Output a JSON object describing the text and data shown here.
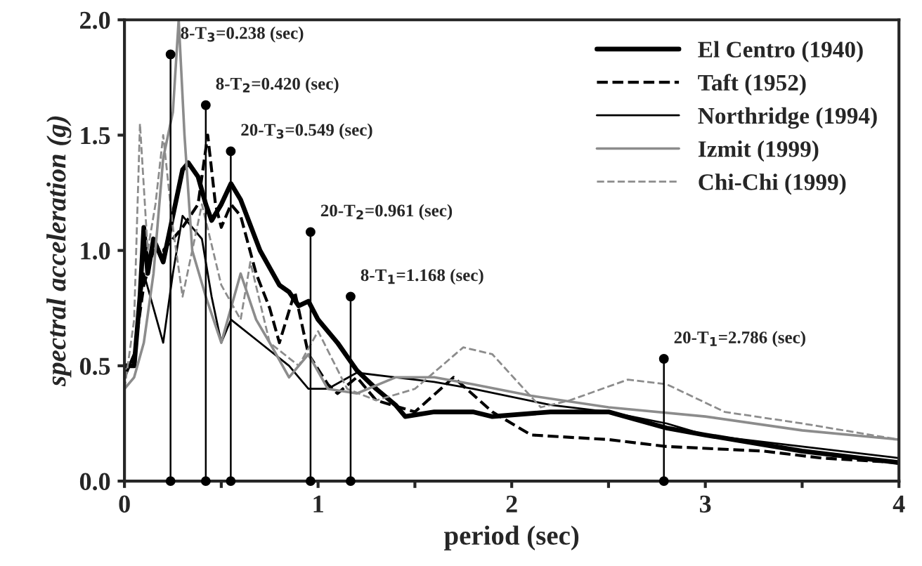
{
  "chart_data": {
    "type": "line",
    "xlabel": "period (sec)",
    "ylabel": "spectral acceleration (g)",
    "xlim": [
      0,
      4
    ],
    "ylim": [
      0,
      2.0
    ],
    "xticks": [
      0,
      {
        "value": 0.5,
        "label": null
      },
      1,
      {
        "value": 1.5,
        "label": null
      },
      2,
      {
        "value": 2.5,
        "label": null
      },
      3,
      {
        "value": 3.5,
        "label": null
      },
      4
    ],
    "yticks": [
      {
        "value": 0,
        "label": "0.0"
      },
      {
        "value": 0.5,
        "label": "0.5"
      },
      {
        "value": 1.0,
        "label": "1.0"
      },
      {
        "value": 1.5,
        "label": "1.5"
      },
      {
        "value": 2.0,
        "label": "2.0"
      }
    ],
    "grid": false,
    "legend": "top right",
    "marker": "none",
    "series": [
      {
        "name": "El Centro (1940)",
        "color": "#000000",
        "line_style": "solid",
        "x": [
          0,
          0.05,
          0.08,
          0.1,
          0.12,
          0.15,
          0.2,
          0.25,
          0.3,
          0.33,
          0.38,
          0.42,
          0.45,
          0.5,
          0.55,
          0.6,
          0.7,
          0.8,
          0.85,
          0.9,
          0.95,
          1.0,
          1.1,
          1.2,
          1.3,
          1.4,
          1.45,
          1.6,
          1.8,
          1.9,
          2.2,
          2.5,
          2.8,
          3.0,
          3.5,
          3.8,
          4.0
        ],
        "values": [
          0.5,
          0.5,
          0.8,
          1.1,
          0.9,
          1.05,
          0.95,
          1.15,
          1.35,
          1.38,
          1.32,
          1.2,
          1.13,
          1.2,
          1.29,
          1.22,
          1.0,
          0.85,
          0.82,
          0.76,
          0.78,
          0.7,
          0.6,
          0.48,
          0.4,
          0.33,
          0.28,
          0.3,
          0.3,
          0.28,
          0.3,
          0.3,
          0.23,
          0.2,
          0.13,
          0.1,
          0.08
        ]
      },
      {
        "name": "Taft (1952)",
        "color": "#000000",
        "line_style": "dashed",
        "x": [
          0,
          0.05,
          0.1,
          0.15,
          0.2,
          0.3,
          0.38,
          0.43,
          0.47,
          0.5,
          0.55,
          0.6,
          0.68,
          0.75,
          0.8,
          0.88,
          0.95,
          1.05,
          1.1,
          1.2,
          1.3,
          1.5,
          1.7,
          1.9,
          2.1,
          2.5,
          2.8,
          3.3,
          3.6,
          4.0
        ],
        "values": [
          0.45,
          0.55,
          0.85,
          1.0,
          1.0,
          1.1,
          1.2,
          1.5,
          1.2,
          1.1,
          1.2,
          1.15,
          0.9,
          0.75,
          0.6,
          0.82,
          0.55,
          0.42,
          0.38,
          0.45,
          0.35,
          0.3,
          0.45,
          0.3,
          0.2,
          0.18,
          0.15,
          0.13,
          0.1,
          0.08
        ]
      },
      {
        "name": "Northridge (1994)",
        "color": "#000000",
        "line_style": "solid",
        "x": [
          0,
          0.05,
          0.1,
          0.15,
          0.2,
          0.25,
          0.3,
          0.35,
          0.4,
          0.45,
          0.5,
          0.55,
          0.7,
          0.85,
          0.95,
          1.05,
          1.2,
          1.4,
          1.6,
          1.8,
          2.2,
          2.5,
          2.8,
          3.0,
          3.5,
          4.0
        ],
        "values": [
          0.45,
          0.55,
          0.9,
          0.75,
          0.6,
          0.9,
          1.15,
          1.1,
          1.05,
          0.8,
          0.6,
          0.7,
          0.6,
          0.5,
          0.4,
          0.4,
          0.47,
          0.45,
          0.43,
          0.4,
          0.33,
          0.3,
          0.25,
          0.2,
          0.15,
          0.1
        ]
      },
      {
        "name": "Izmit (1999)",
        "color": "#8c8c8c",
        "line_style": "solid",
        "x": [
          0,
          0.05,
          0.1,
          0.15,
          0.2,
          0.25,
          0.28,
          0.31,
          0.35,
          0.42,
          0.5,
          0.6,
          0.68,
          0.75,
          0.85,
          0.95,
          1.05,
          1.2,
          1.4,
          1.6,
          1.8,
          2.1,
          2.5,
          3.0,
          3.5,
          4.0
        ],
        "values": [
          0.4,
          0.45,
          0.6,
          0.9,
          1.4,
          1.6,
          2.0,
          1.5,
          1.0,
          0.8,
          0.6,
          0.9,
          0.7,
          0.6,
          0.45,
          0.55,
          0.4,
          0.38,
          0.45,
          0.45,
          0.42,
          0.37,
          0.32,
          0.28,
          0.22,
          0.18
        ]
      },
      {
        "name": "Chi-Chi (1999)",
        "color": "#8c8c8c",
        "line_style": "dashed",
        "x": [
          0,
          0.05,
          0.08,
          0.12,
          0.16,
          0.2,
          0.25,
          0.3,
          0.35,
          0.4,
          0.5,
          0.6,
          0.65,
          0.75,
          0.9,
          1.0,
          1.15,
          1.3,
          1.5,
          1.75,
          1.9,
          2.15,
          2.3,
          2.6,
          2.8,
          3.1,
          3.5,
          4.0
        ],
        "values": [
          0.4,
          0.7,
          1.55,
          1.0,
          1.2,
          1.5,
          1.1,
          0.8,
          1.0,
          1.2,
          0.85,
          0.7,
          0.95,
          0.6,
          0.5,
          0.65,
          0.4,
          0.35,
          0.4,
          0.58,
          0.55,
          0.32,
          0.35,
          0.44,
          0.42,
          0.3,
          0.25,
          0.18
        ]
      },
      {
        "type": "lollipop",
        "marker": "circle",
        "color": "#000000",
        "x": [
          0.238,
          0.42,
          0.549,
          0.961,
          1.168,
          2.786
        ],
        "values": [
          1.85,
          1.63,
          1.43,
          1.08,
          0.8,
          0.53
        ]
      },
      {
        "type": "scatter",
        "marker": "circle",
        "color": "#000000",
        "x": [
          0.238,
          0.42,
          0.549,
          0.961,
          1.168,
          2.786
        ],
        "values": [
          0,
          0,
          0,
          0,
          0,
          0
        ]
      }
    ],
    "annotations": [
      {
        "text": "8-T$_{3}$=0.238 (sec)",
        "x": 0.238,
        "y": 1.85
      },
      {
        "text": "8-T$_{2}$=0.420 (sec)",
        "x": 0.42,
        "y": 1.63
      },
      {
        "text": "20-T$_{3}$=0.549 (sec)",
        "x": 0.549,
        "y": 1.43
      },
      {
        "text": "20-T$_{2}$=0.961 (sec)",
        "x": 0.961,
        "y": 1.08
      },
      {
        "text": "8-T$_{1}$=1.168 (sec)",
        "x": 1.168,
        "y": 0.8
      },
      {
        "text": "20-T$_{1}$=2.786 (sec)",
        "x": 2.786,
        "y": 0.53
      }
    ]
  }
}
